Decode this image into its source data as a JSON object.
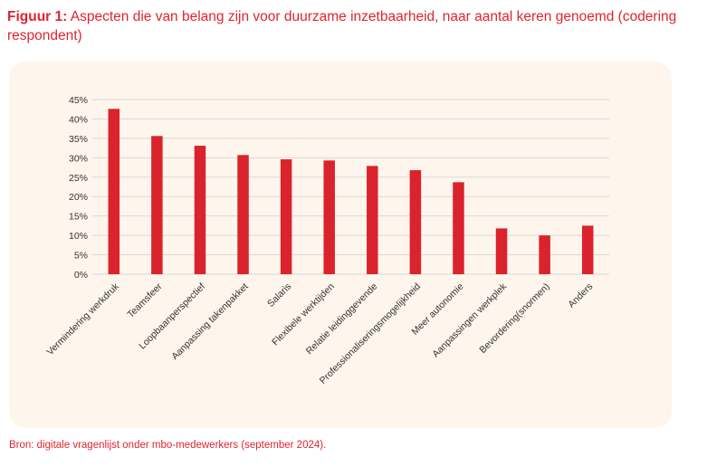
{
  "figure": {
    "label": "Figuur 1:",
    "title": "Aspecten die van belang zijn voor duurzame inzetbaarheid, naar aantal keren genoemd (codering respondent)",
    "source": "Bron: digitale vragenlijst onder mbo-medewerkers (september 2024)."
  },
  "chart_data": {
    "type": "bar",
    "title": "",
    "xlabel": "",
    "ylabel": "",
    "ylim": [
      0,
      45
    ],
    "yticks": [
      "0%",
      "5%",
      "10%",
      "15%",
      "20%",
      "25%",
      "30%",
      "35%",
      "40%",
      "45%"
    ],
    "grid": true,
    "categories": [
      "Vermindering werkdruk",
      "Teamsfeer",
      "Loopbaanperspectief",
      "Aanpassing takenpakket",
      "Salaris",
      "Flexibele werktijden",
      "Relatie leidinggevende",
      "Professionaliseringsmogelijkheid",
      "Meer autonomie",
      "Aanpassingen werkplek",
      "Bevordering(snormen)",
      "Anders"
    ],
    "values": [
      42.6,
      35.6,
      33.1,
      30.7,
      29.6,
      29.3,
      27.9,
      26.8,
      23.7,
      11.8,
      10.0,
      12.5
    ],
    "colors": {
      "bar": "#da232c",
      "grid": "#d9d9d9",
      "title": "#e0242f",
      "background": "#fef5ec"
    }
  }
}
